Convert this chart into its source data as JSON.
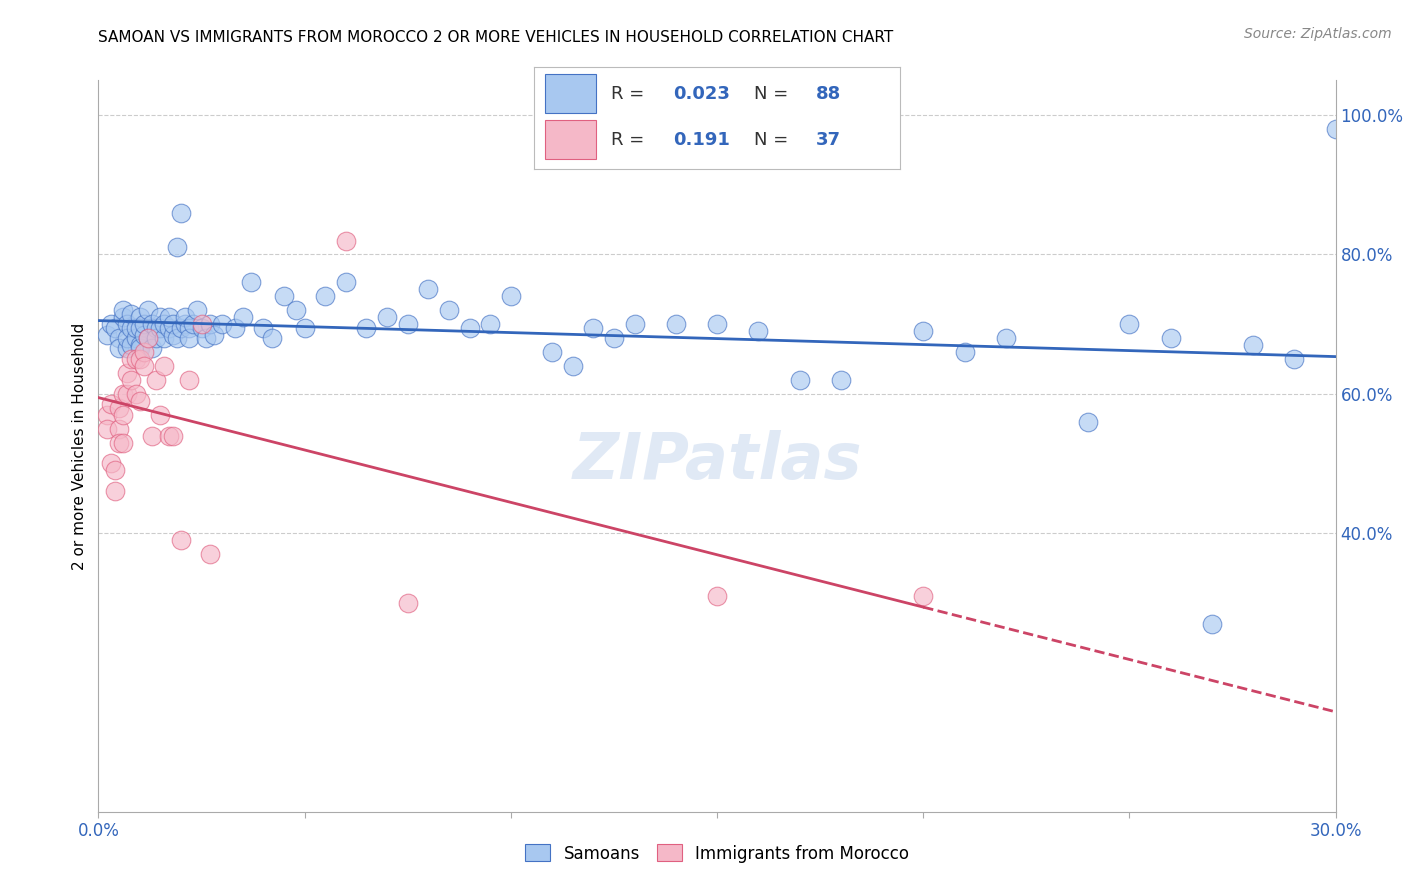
{
  "title": "SAMOAN VS IMMIGRANTS FROM MOROCCO 2 OR MORE VEHICLES IN HOUSEHOLD CORRELATION CHART",
  "source": "Source: ZipAtlas.com",
  "ylabel": "2 or more Vehicles in Household",
  "x_min": 0.0,
  "x_max": 0.3,
  "y_min": 0.0,
  "y_max": 1.05,
  "x_ticks": [
    0.0,
    0.05,
    0.1,
    0.15,
    0.2,
    0.25,
    0.3
  ],
  "y_ticks_right": [
    0.4,
    0.6,
    0.8,
    1.0
  ],
  "y_tick_labels_right": [
    "40.0%",
    "60.0%",
    "80.0%",
    "100.0%"
  ],
  "blue_color": "#a8c8f0",
  "pink_color": "#f5b8c8",
  "blue_edge_color": "#4472c4",
  "pink_edge_color": "#e06080",
  "blue_line_color": "#3366BB",
  "pink_line_color": "#cc4466",
  "legend_R_blue": "0.023",
  "legend_N_blue": "88",
  "legend_R_pink": "0.191",
  "legend_N_pink": "37",
  "watermark": "ZIPatlas",
  "blue_scatter_x": [
    0.002,
    0.003,
    0.004,
    0.005,
    0.005,
    0.006,
    0.006,
    0.007,
    0.007,
    0.007,
    0.008,
    0.008,
    0.008,
    0.009,
    0.009,
    0.01,
    0.01,
    0.01,
    0.01,
    0.011,
    0.011,
    0.012,
    0.012,
    0.013,
    0.013,
    0.014,
    0.014,
    0.015,
    0.015,
    0.016,
    0.016,
    0.017,
    0.017,
    0.018,
    0.018,
    0.019,
    0.019,
    0.02,
    0.02,
    0.021,
    0.021,
    0.022,
    0.022,
    0.023,
    0.024,
    0.025,
    0.026,
    0.027,
    0.028,
    0.03,
    0.033,
    0.035,
    0.037,
    0.04,
    0.042,
    0.045,
    0.048,
    0.05,
    0.055,
    0.06,
    0.065,
    0.07,
    0.075,
    0.08,
    0.085,
    0.09,
    0.095,
    0.1,
    0.11,
    0.115,
    0.12,
    0.125,
    0.13,
    0.14,
    0.15,
    0.16,
    0.17,
    0.18,
    0.2,
    0.21,
    0.22,
    0.24,
    0.25,
    0.26,
    0.27,
    0.28,
    0.29,
    0.3
  ],
  "blue_scatter_y": [
    0.685,
    0.7,
    0.695,
    0.68,
    0.665,
    0.71,
    0.72,
    0.665,
    0.7,
    0.68,
    0.695,
    0.715,
    0.67,
    0.68,
    0.695,
    0.71,
    0.695,
    0.67,
    0.665,
    0.685,
    0.7,
    0.72,
    0.68,
    0.7,
    0.665,
    0.695,
    0.68,
    0.71,
    0.695,
    0.68,
    0.7,
    0.695,
    0.71,
    0.685,
    0.7,
    0.81,
    0.68,
    0.86,
    0.695,
    0.7,
    0.71,
    0.695,
    0.68,
    0.7,
    0.72,
    0.695,
    0.68,
    0.7,
    0.685,
    0.7,
    0.695,
    0.71,
    0.76,
    0.695,
    0.68,
    0.74,
    0.72,
    0.695,
    0.74,
    0.76,
    0.695,
    0.71,
    0.7,
    0.75,
    0.72,
    0.695,
    0.7,
    0.74,
    0.66,
    0.64,
    0.695,
    0.68,
    0.7,
    0.7,
    0.7,
    0.69,
    0.62,
    0.62,
    0.69,
    0.66,
    0.68,
    0.56,
    0.7,
    0.68,
    0.27,
    0.67,
    0.65,
    0.98
  ],
  "pink_scatter_x": [
    0.002,
    0.002,
    0.003,
    0.003,
    0.004,
    0.004,
    0.005,
    0.005,
    0.005,
    0.006,
    0.006,
    0.006,
    0.007,
    0.007,
    0.008,
    0.008,
    0.009,
    0.009,
    0.01,
    0.01,
    0.011,
    0.011,
    0.012,
    0.013,
    0.014,
    0.015,
    0.016,
    0.017,
    0.018,
    0.02,
    0.022,
    0.025,
    0.027,
    0.06,
    0.075,
    0.15,
    0.2
  ],
  "pink_scatter_y": [
    0.57,
    0.55,
    0.585,
    0.5,
    0.49,
    0.46,
    0.58,
    0.55,
    0.53,
    0.6,
    0.57,
    0.53,
    0.63,
    0.6,
    0.65,
    0.62,
    0.65,
    0.6,
    0.65,
    0.59,
    0.66,
    0.64,
    0.68,
    0.54,
    0.62,
    0.57,
    0.64,
    0.54,
    0.54,
    0.39,
    0.62,
    0.7,
    0.37,
    0.82,
    0.3,
    0.31,
    0.31
  ]
}
